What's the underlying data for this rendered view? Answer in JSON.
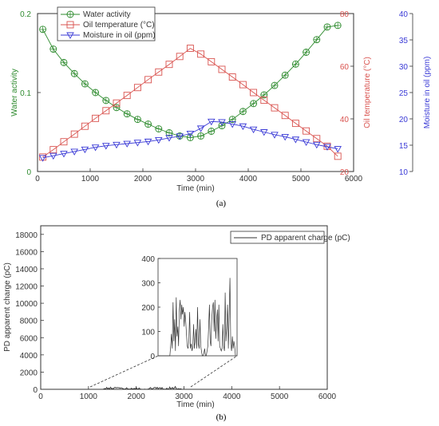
{
  "colors": {
    "water": "#2e8b2e",
    "oil": "#d9534f",
    "moisture": "#3a3ad6",
    "pd": "#333333",
    "axis": "#333333"
  },
  "chart_data": [
    {
      "type": "line",
      "caption": "(a)",
      "xlabel": "Time (min)",
      "xlim": [
        0,
        6000
      ],
      "x_ticks": [
        "0",
        "1000",
        "2000",
        "3000",
        "4000",
        "5000",
        "6000"
      ],
      "legend_position": "top-left",
      "axes": {
        "left": {
          "label": "Water activity",
          "ylim": [
            0,
            0.2
          ],
          "ticks": [
            "0",
            "0.1",
            "0.2"
          ]
        },
        "right1": {
          "label": "Oil temperature (°C)",
          "ylim": [
            20,
            80
          ],
          "ticks": [
            "20",
            "40",
            "60",
            "80"
          ]
        },
        "right2": {
          "label": "Moisture in oil (ppm)",
          "ylim": [
            10,
            40
          ],
          "ticks": [
            "10",
            "15",
            "20",
            "25",
            "30",
            "35",
            "40"
          ]
        }
      },
      "series": [
        {
          "name": "Water activity",
          "axis": "left",
          "marker": "circle-plus",
          "x": [
            100,
            300,
            500,
            700,
            900,
            1100,
            1300,
            1500,
            1700,
            1900,
            2100,
            2300,
            2500,
            2700,
            2900,
            3100,
            3300,
            3500,
            3700,
            3900,
            4100,
            4300,
            4500,
            4700,
            4900,
            5100,
            5300,
            5500,
            5700
          ],
          "values": [
            0.18,
            0.155,
            0.138,
            0.124,
            0.111,
            0.1,
            0.09,
            0.081,
            0.073,
            0.066,
            0.06,
            0.054,
            0.049,
            0.045,
            0.043,
            0.045,
            0.051,
            0.058,
            0.066,
            0.076,
            0.086,
            0.097,
            0.109,
            0.122,
            0.136,
            0.151,
            0.167,
            0.183,
            0.185
          ]
        },
        {
          "name": "Oil temperature (°C)",
          "axis": "right1",
          "marker": "square",
          "x": [
            100,
            300,
            500,
            700,
            900,
            1100,
            1300,
            1500,
            1700,
            1900,
            2100,
            2300,
            2500,
            2700,
            2900,
            3100,
            3300,
            3500,
            3700,
            3900,
            4100,
            4300,
            4500,
            4700,
            4900,
            5100,
            5300,
            5500,
            5700
          ],
          "values": [
            25.5,
            28.3,
            31.3,
            34.2,
            37.2,
            40.2,
            43.1,
            46.0,
            48.9,
            51.9,
            54.9,
            57.8,
            60.7,
            63.7,
            66.8,
            64.6,
            61.7,
            58.8,
            55.9,
            53.0,
            50.0,
            47.1,
            44.2,
            41.3,
            38.3,
            35.4,
            32.5,
            29.6,
            25.8
          ]
        },
        {
          "name": "Moisture in oil (ppm)",
          "axis": "right2",
          "marker": "triangle-down",
          "x": [
            100,
            300,
            500,
            700,
            900,
            1100,
            1300,
            1500,
            1700,
            1900,
            2100,
            2300,
            2500,
            2700,
            2900,
            3100,
            3300,
            3500,
            3700,
            3900,
            4100,
            4300,
            4500,
            4700,
            4900,
            5100,
            5300,
            5500,
            5700
          ],
          "values": [
            12.6,
            13.0,
            13.4,
            13.8,
            14.2,
            14.6,
            14.9,
            15.1,
            15.3,
            15.5,
            15.7,
            16.0,
            16.4,
            16.7,
            17.2,
            18.2,
            19.5,
            19.4,
            19.0,
            18.6,
            18.0,
            17.5,
            17.0,
            16.6,
            16.1,
            15.6,
            15.1,
            14.7,
            14.3
          ]
        }
      ]
    },
    {
      "type": "line",
      "caption": "(b)",
      "xlabel": "Time (min)",
      "ylabel": "PD apparent charge (pC)",
      "xlim": [
        0,
        6000
      ],
      "ylim": [
        0,
        19000
      ],
      "x_ticks": [
        "0",
        "1000",
        "2000",
        "3000",
        "4000",
        "5000",
        "6000"
      ],
      "y_ticks": [
        "0",
        "2000",
        "4000",
        "6000",
        "8000",
        "10000",
        "12000",
        "14000",
        "16000",
        "18000"
      ],
      "legend_position": "top-right",
      "series": [
        {
          "name": "PD apparent charge (pC)",
          "x": [
            1000,
            1300,
            1320,
            1340,
            1360,
            1380,
            1400,
            1420,
            1440,
            1460,
            1480,
            1500,
            1520,
            1540,
            1560,
            1580,
            1600,
            1620,
            1640,
            1660,
            1680,
            1700,
            1720,
            1740,
            1760,
            1780,
            1800,
            1820,
            1840,
            1860,
            1880,
            1900,
            1920,
            1940,
            1960,
            1980,
            2000,
            2020,
            2040,
            2060,
            2080,
            2100,
            2120,
            2140,
            2160,
            2180,
            2200,
            2220,
            2240,
            2260,
            2280,
            2300,
            2320,
            2340,
            2360,
            2380,
            2400,
            2420,
            2440,
            2460,
            2480,
            2500,
            2520,
            2540,
            2560,
            2580,
            2600,
            2620,
            2640,
            2660,
            2680,
            2700,
            2720,
            2740,
            2760,
            2780,
            2800,
            2820,
            2840,
            2860,
            2880,
            2900,
            2920,
            2940,
            2960,
            2980,
            3000
          ],
          "values": [
            0,
            0,
            40,
            90,
            30,
            220,
            60,
            150,
            20,
            240,
            80,
            120,
            40,
            190,
            230,
            150,
            210,
            170,
            200,
            120,
            180,
            140,
            90,
            40,
            30,
            60,
            180,
            30,
            50,
            20,
            40,
            130,
            30,
            60,
            110,
            30,
            200,
            50,
            30,
            150,
            40,
            20,
            0,
            0,
            10,
            30,
            0,
            0,
            20,
            40,
            120,
            210,
            60,
            40,
            150,
            200,
            220,
            100,
            230,
            70,
            150,
            190,
            60,
            210,
            40,
            30,
            20,
            30,
            130,
            40,
            20,
            260,
            60,
            120,
            210,
            30,
            170,
            320,
            50,
            20,
            80,
            30,
            60,
            40,
            0,
            0,
            0
          ]
        }
      ],
      "inset": {
        "xlim": [
          1000,
          3000
        ],
        "ylim": [
          0,
          400
        ],
        "y_ticks": [
          "0",
          "100",
          "200",
          "300",
          "400"
        ]
      }
    }
  ]
}
